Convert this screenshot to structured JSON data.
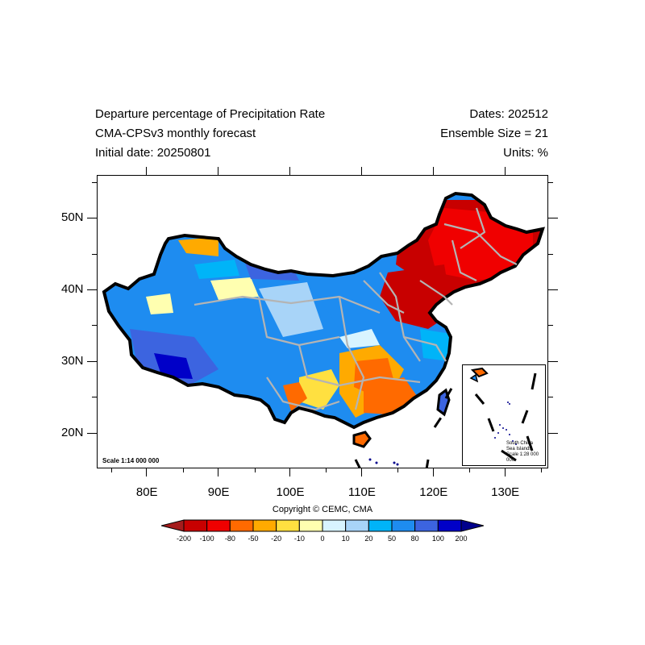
{
  "header": {
    "title_line1": "Departure percentage of Precipitation Rate",
    "title_line2": "CMA-CPSv3 monthly forecast",
    "title_line3": "Initial date: 20250801",
    "dates": "Dates: 202512",
    "ensemble": "Ensemble Size = 21",
    "units": "Units: %"
  },
  "map": {
    "lon_ticks": [
      "80E",
      "90E",
      "100E",
      "110E",
      "120E",
      "130E"
    ],
    "lat_ticks": [
      "20N",
      "30N",
      "40N",
      "50N"
    ],
    "lon_range": [
      73,
      136
    ],
    "lat_range": [
      15,
      56
    ],
    "scale_note": "Scale 1:14 000 000",
    "inset_label": [
      "South China",
      "Sea Islands",
      "Scale 1:28 000 000"
    ]
  },
  "copyright": "Copyright © CEMC, CMA",
  "colorbar": {
    "labels": [
      "-200",
      "-100",
      "-80",
      "-50",
      "-20",
      "-10",
      "0",
      "10",
      "20",
      "50",
      "80",
      "100",
      "200"
    ],
    "colors": [
      "#a51c1c",
      "#c80000",
      "#f00000",
      "#ff6a00",
      "#ffaa00",
      "#ffe040",
      "#ffffb0",
      "#d8f4ff",
      "#a8d4f8",
      "#00b4f8",
      "#1e8cf0",
      "#3c64e0",
      "#0000c8",
      "#00008c"
    ]
  }
}
